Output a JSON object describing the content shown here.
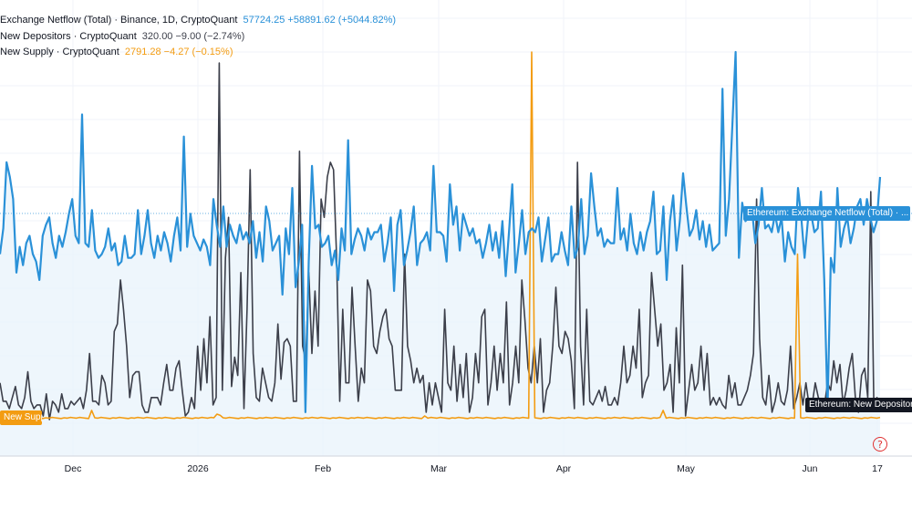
{
  "legend": {
    "netflow_label": "Exchange Netflow (Total) · Binance, 1D, CryptoQuant",
    "netflow_values": "57724.25  +58891.62 (+5044.82%)",
    "depositors_label": "New Depositors · CryptoQuant",
    "depositors_values": "320.00  −9.00 (−2.74%)",
    "supply_label": "New Supply · CryptoQuant",
    "supply_values": "2791.28  −4.27 (−0.15%)"
  },
  "tags": {
    "netflow": "Ethereum: Exchange Netflow (Total) · ...",
    "depositors": "Ethereum: New Depositors",
    "supply": "New Supply"
  },
  "help_icon": "?",
  "colors": {
    "netflow": "#2a91d8",
    "netflow_fill": "#eaf4fb",
    "depositors": "#3c3f4a",
    "supply": "#f39c12"
  },
  "chart_data": {
    "type": "line",
    "x_axis_labels": [
      "Dec",
      "2026",
      "Feb",
      "Mar",
      "Apr",
      "May",
      "Jun",
      "17"
    ],
    "series": [
      {
        "name": "Exchange Netflow (Total)",
        "color": "#2a91d8",
        "values": [
          45,
          52,
          70,
          66,
          60,
          40,
          47,
          42,
          48,
          50,
          45,
          43,
          38,
          50,
          53,
          55,
          48,
          44,
          50,
          47,
          51,
          56,
          60,
          50,
          48,
          83,
          48,
          47,
          57,
          46,
          44,
          45,
          47,
          52,
          46,
          48,
          42,
          43,
          50,
          44,
          44,
          45,
          57,
          45,
          50,
          57,
          48,
          44,
          50,
          46,
          51,
          48,
          43,
          50,
          55,
          46,
          77,
          47,
          56,
          50,
          48,
          46,
          49,
          47,
          42,
          60,
          53,
          47,
          58,
          47,
          53,
          50,
          48,
          53,
          49,
          51,
          48,
          54,
          44,
          51,
          43,
          58,
          54,
          46,
          48,
          50,
          34,
          52,
          45,
          63,
          36,
          43,
          53,
          2,
          43,
          69,
          52,
          53,
          47,
          48,
          50,
          42,
          46,
          38,
          52,
          46,
          76,
          45,
          49,
          52,
          50,
          46,
          52,
          49,
          51,
          51,
          53,
          43,
          48,
          55,
          35,
          53,
          57,
          42,
          46,
          51,
          58,
          42,
          48,
          49,
          51,
          46,
          69,
          51,
          51,
          50,
          43,
          64,
          53,
          58,
          46,
          56,
          53,
          50,
          52,
          48,
          49,
          44,
          48,
          53,
          46,
          51,
          44,
          54,
          39,
          51,
          64,
          40,
          48,
          57,
          45,
          51,
          52,
          51,
          55,
          43,
          49,
          55,
          43,
          45,
          45,
          51,
          46,
          42,
          58,
          44,
          47,
          60,
          45,
          50,
          67,
          58,
          50,
          52,
          47,
          49,
          48,
          48,
          63,
          49,
          52,
          46,
          56,
          48,
          45,
          51,
          46,
          51,
          54,
          62,
          45,
          46,
          58,
          38,
          54,
          61,
          46,
          54,
          67,
          58,
          50,
          52,
          57,
          49,
          54,
          47,
          53,
          46,
          47,
          48,
          90,
          50,
          60,
          80,
          100,
          44,
          59,
          54,
          55,
          57,
          48,
          53,
          63,
          52,
          53,
          51,
          56,
          51,
          55,
          43,
          51,
          47,
          45,
          63,
          55,
          44,
          54,
          56,
          51,
          52,
          62,
          38,
          3,
          44,
          40,
          63,
          47,
          52,
          55,
          48,
          52,
          58,
          60,
          53,
          60,
          55,
          51,
          54,
          66
        ],
        "x_range": [
          0,
          282
        ]
      },
      {
        "name": "New Depositors",
        "color": "#3c3f4a",
        "values": [
          10,
          5,
          5,
          3,
          6,
          9,
          4,
          3,
          6,
          13,
          5,
          3,
          4,
          4,
          1,
          7,
          0,
          5,
          4,
          2,
          7,
          3,
          3,
          5,
          4,
          5,
          6,
          3,
          8,
          18,
          5,
          5,
          4,
          12,
          10,
          4,
          5,
          24,
          26,
          38,
          30,
          20,
          6,
          12,
          13,
          13,
          4,
          2,
          2,
          6,
          6,
          6,
          4,
          10,
          15,
          8,
          8,
          14,
          16,
          8,
          1,
          2,
          6,
          3,
          20,
          8,
          22,
          10,
          28,
          4,
          6,
          97,
          8,
          44,
          55,
          9,
          17,
          12,
          40,
          3,
          30,
          68,
          18,
          6,
          5,
          14,
          10,
          6,
          5,
          10,
          26,
          11,
          21,
          22,
          20,
          5,
          5,
          73,
          20,
          16,
          40,
          18,
          35,
          20,
          60,
          55,
          66,
          70,
          68,
          44,
          5,
          30,
          10,
          10,
          36,
          20,
          5,
          14,
          10,
          38,
          35,
          20,
          18,
          24,
          28,
          30,
          22,
          20,
          8,
          8,
          8,
          45,
          20,
          16,
          10,
          14,
          10,
          12,
          2,
          10,
          4,
          10,
          6,
          2,
          30,
          10,
          8,
          20,
          5,
          15,
          6,
          18,
          2,
          6,
          18,
          10,
          28,
          30,
          4,
          10,
          20,
          8,
          18,
          10,
          32,
          4,
          10,
          20,
          10,
          38,
          27,
          14,
          10,
          20,
          10,
          22,
          2,
          8,
          10,
          20,
          36,
          20,
          18,
          24,
          22,
          16,
          3,
          70,
          20,
          4,
          30,
          5,
          4,
          6,
          8,
          5,
          9,
          4,
          4,
          6,
          4,
          10,
          20,
          10,
          12,
          20,
          14,
          30,
          6,
          10,
          12,
          40,
          30,
          20,
          26,
          8,
          10,
          15,
          2,
          25,
          10,
          42,
          1,
          8,
          15,
          8,
          10,
          20,
          8,
          18,
          4,
          6,
          4,
          6,
          4,
          3,
          12,
          6,
          10,
          4,
          4,
          6,
          8,
          12,
          18,
          60,
          22,
          6,
          4,
          12,
          2,
          5,
          10,
          5,
          4,
          8,
          20,
          3,
          6,
          10,
          4,
          10,
          4,
          4,
          10,
          6,
          5,
          4,
          10,
          8,
          16,
          10,
          15,
          4,
          8,
          14,
          18,
          6,
          2,
          12,
          14,
          6,
          62,
          3,
          6,
          4
        ],
        "x_range": [
          0,
          282
        ]
      },
      {
        "name": "New Supply",
        "color": "#f39c12",
        "values": [
          0.5,
          0.4,
          0.3,
          0.5,
          0.4,
          0.6,
          0.3,
          0.5,
          0.4,
          0.6,
          0.5,
          0.4,
          0.6,
          0.5,
          0.3,
          0.5,
          0.4,
          0.6,
          0.5,
          0.4,
          0.3,
          0.5,
          0.4,
          0.6,
          0.5,
          0.4,
          0.6,
          0.5,
          0.4,
          0.3,
          2.5,
          0.5,
          0.4,
          0.6,
          0.5,
          0.4,
          0.3,
          0.5,
          0.4,
          0.6,
          0.5,
          0.4,
          0.3,
          0.5,
          0.4,
          0.6,
          0.5,
          0.4,
          0.6,
          0.5,
          0.4,
          0.3,
          0.5,
          0.4,
          0.6,
          0.5,
          0.4,
          0.3,
          0.5,
          0.4,
          0.6,
          0.5,
          0.4,
          0.3,
          0.5,
          0.4,
          0.6,
          0.5,
          0.4,
          0.6,
          0.5,
          1.5,
          1.2,
          0.5,
          0.4,
          0.6,
          0.5,
          0.4,
          0.3,
          0.5,
          0.4,
          0.6,
          0.5,
          0.4,
          0.3,
          0.5,
          0.4,
          0.6,
          0.5,
          0.4,
          0.6,
          0.5,
          0.4,
          0.3,
          0.5,
          0.4,
          0.6,
          0.5,
          0.4,
          0.3,
          0.5,
          0.4,
          0.6,
          0.5,
          0.4,
          0.6,
          0.5,
          0.4,
          0.3,
          0.5,
          0.4,
          0.6,
          0.5,
          0.4,
          0.3,
          0.5,
          0.4,
          0.6,
          0.5,
          0.4,
          0.6,
          0.5,
          0.4,
          0.3,
          0.5,
          0.4,
          0.6,
          0.5,
          0.4,
          0.3,
          0.5,
          0.4,
          0.6,
          0.5,
          0.4,
          0.6,
          0.5,
          0.4,
          0.3,
          1.0,
          0.4,
          0.6,
          0.5,
          0.4,
          0.6,
          0.5,
          0.4,
          0.3,
          0.5,
          0.4,
          0.6,
          0.5,
          0.4,
          0.3,
          0.5,
          0.4,
          0.6,
          0.5,
          0.4,
          0.6,
          0.5,
          0.4,
          0.3,
          0.5,
          0.4,
          0.6,
          0.5,
          0.4,
          0.3,
          0.5,
          0.4,
          0.6,
          0.5,
          0.4,
          100,
          0.5,
          0.4,
          0.3,
          0.5,
          0.4,
          0.6,
          0.5,
          0.4,
          0.3,
          0.5,
          0.4,
          0.6,
          0.5,
          0.4,
          0.6,
          0.5,
          0.4,
          0.3,
          0.5,
          0.4,
          0.6,
          0.5,
          0.4,
          0.3,
          0.5,
          0.4,
          0.6,
          0.5,
          0.4,
          0.6,
          0.5,
          0.4,
          0.3,
          0.5,
          0.4,
          0.6,
          0.5,
          0.4,
          0.3,
          0.5,
          0.4,
          0.6,
          2.5,
          0.4,
          0.6,
          0.5,
          0.4,
          0.3,
          0.5,
          0.4,
          0.6,
          0.5,
          0.4,
          0.3,
          0.5,
          0.4,
          0.6,
          0.5,
          0.4,
          0.6,
          0.5,
          0.4,
          0.3,
          0.5,
          0.4,
          0.6,
          0.5,
          0.4,
          0.3,
          0.5,
          0.4,
          0.6,
          0.5,
          0.4,
          0.6,
          0.5,
          0.4,
          0.3,
          0.5,
          0.4,
          0.6,
          0.5,
          0.4,
          0.3,
          0.5,
          0.4,
          45,
          0.5,
          0.4,
          0.6,
          0.5,
          0.4,
          0.3,
          0.5,
          0.4,
          0.6,
          0.5,
          0.4,
          0.3,
          0.5,
          0.4,
          0.6,
          0.5,
          0.4,
          0.6,
          0.5,
          0.4,
          0.3,
          0.5,
          0.4,
          0.6,
          0.5,
          0.4,
          0.6
        ],
        "x_range": [
          0,
          282
        ]
      }
    ],
    "grid": true,
    "legend_position": "top-left"
  }
}
